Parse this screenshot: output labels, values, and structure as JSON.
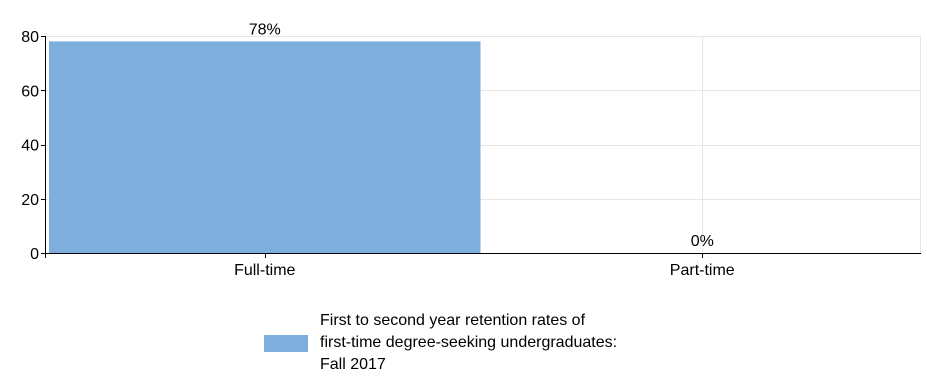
{
  "chart_data": {
    "type": "bar",
    "categories": [
      "Full-time",
      "Part-time"
    ],
    "series": [
      {
        "name": "First to second year retention rates of first-time degree-seeking undergraduates: Fall 2017",
        "values": [
          78,
          0
        ],
        "data_labels": [
          "78%",
          "0%"
        ],
        "color": "#7eaedb"
      }
    ],
    "ylim": [
      0,
      80
    ],
    "yticks": [
      0,
      20,
      40,
      60,
      80
    ],
    "grid": true,
    "legend_position": "bottom"
  }
}
